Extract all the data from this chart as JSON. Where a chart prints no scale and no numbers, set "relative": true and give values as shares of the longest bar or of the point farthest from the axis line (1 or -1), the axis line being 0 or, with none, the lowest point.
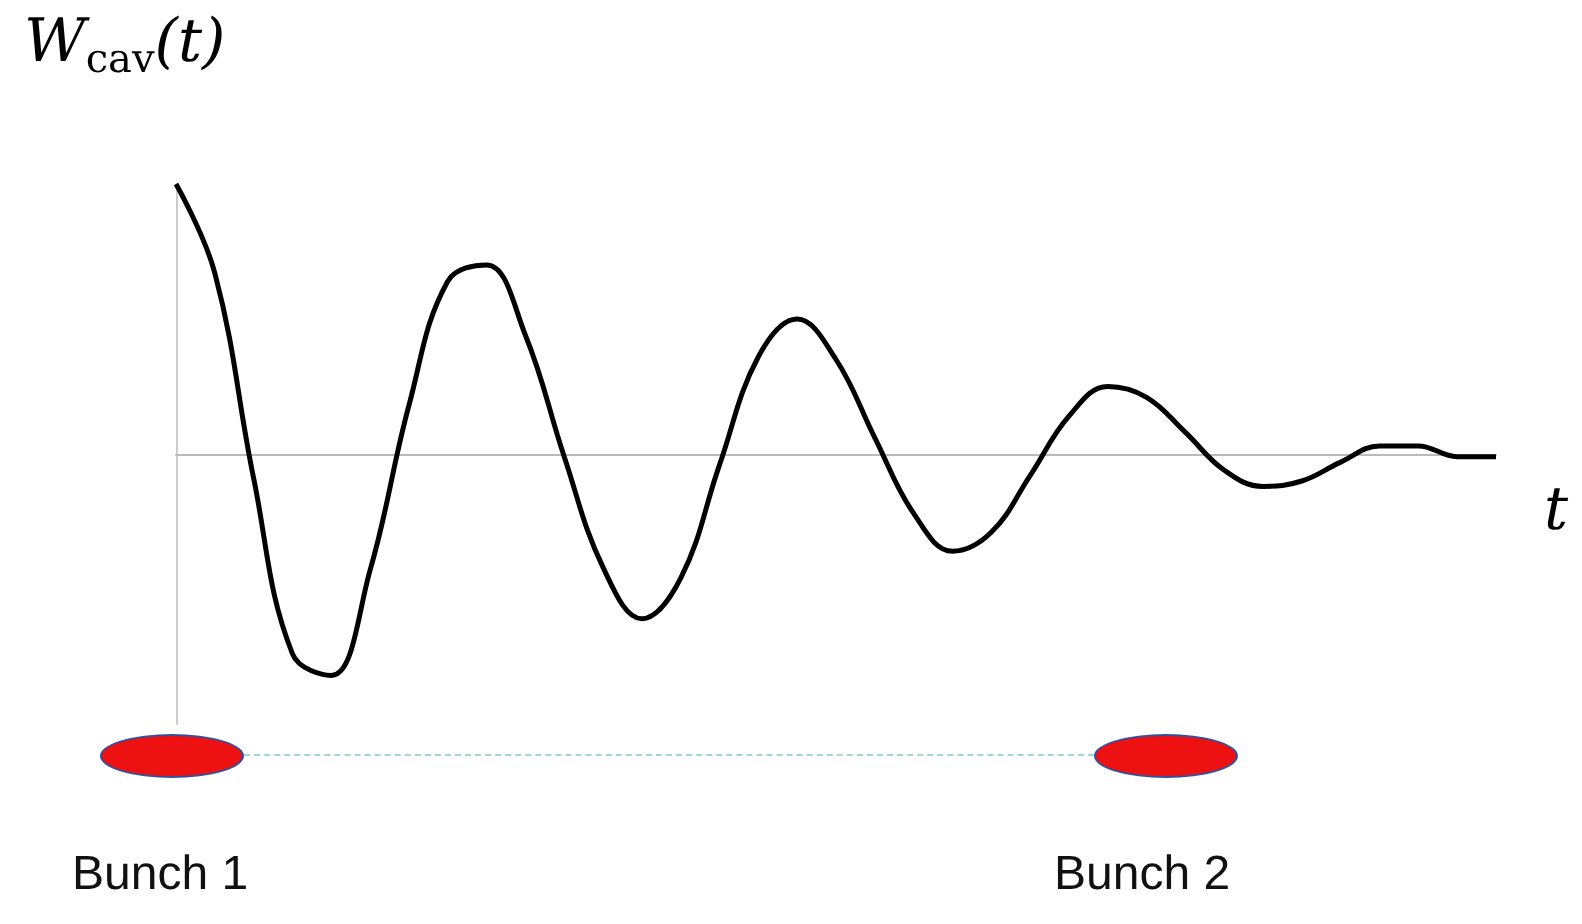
{
  "chart_data": {
    "type": "line",
    "relative": true,
    "ylabel": "W$_{cav}$(t)",
    "xlabel": "t",
    "color": "#000000",
    "marker": "none",
    "line_style": "solid",
    "grid": false,
    "categories": [
      null,
      null,
      null,
      null,
      null,
      null,
      null,
      null,
      null,
      null,
      null,
      null,
      null,
      null,
      null,
      null,
      null,
      null,
      null,
      null,
      null,
      null,
      null,
      null,
      null,
      null,
      null,
      null,
      null,
      null,
      null,
      null,
      null,
      null,
      null
    ],
    "values": [
      1.0,
      0.67,
      -0.09,
      -0.74,
      -0.82,
      -0.43,
      0.18,
      0.64,
      0.7,
      0.44,
      -0.01,
      -0.42,
      -0.61,
      -0.46,
      -0.04,
      0.36,
      0.5,
      0.35,
      0.06,
      -0.22,
      -0.36,
      -0.29,
      -0.08,
      0.14,
      0.25,
      0.21,
      0.08,
      -0.06,
      -0.12,
      -0.1,
      -0.03,
      0.03,
      0.03,
      -0.01,
      -0.01
    ],
    "annotations": [
      "Bunch 1",
      "Bunch 2"
    ]
  }
}
